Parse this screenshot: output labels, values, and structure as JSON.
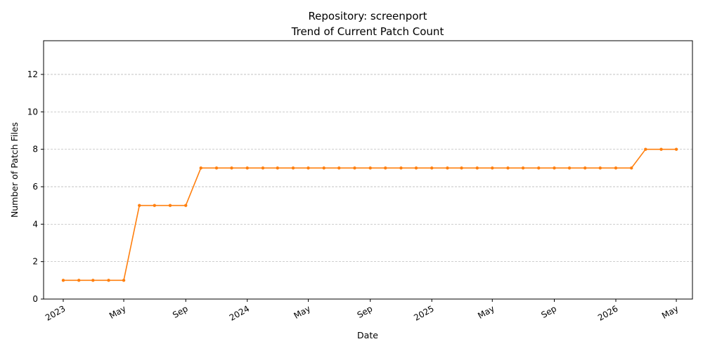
{
  "chart_data": {
    "type": "line",
    "title": "Repository: screenport",
    "subtitle": "Trend of Current Patch Count",
    "xlabel": "Date",
    "ylabel": "Number of Patch Files",
    "ylim": [
      0,
      13.8
    ],
    "yticks": [
      0,
      2,
      4,
      6,
      8,
      10,
      12
    ],
    "xlim": [
      "2022-11-23",
      "2026-06-02"
    ],
    "xticks": [
      {
        "date": "2023-01-01",
        "label": "2023"
      },
      {
        "date": "2023-05-01",
        "label": "May"
      },
      {
        "date": "2023-09-01",
        "label": "Sep"
      },
      {
        "date": "2024-01-01",
        "label": "2024"
      },
      {
        "date": "2024-05-01",
        "label": "May"
      },
      {
        "date": "2024-09-01",
        "label": "Sep"
      },
      {
        "date": "2025-01-01",
        "label": "2025"
      },
      {
        "date": "2025-05-01",
        "label": "May"
      },
      {
        "date": "2025-09-01",
        "label": "Sep"
      },
      {
        "date": "2026-01-01",
        "label": "2026"
      },
      {
        "date": "2026-05-01",
        "label": "May"
      }
    ],
    "grid": "y-dashed",
    "line_color": "#ff7f0e",
    "series": [
      {
        "x": [
          "2023-01-01",
          "2023-02-01",
          "2023-03-01",
          "2023-04-01",
          "2023-05-01",
          "2023-06-01",
          "2023-07-01",
          "2023-08-01",
          "2023-09-01",
          "2023-10-01",
          "2023-11-01",
          "2023-12-01",
          "2024-01-01",
          "2024-02-01",
          "2024-03-01",
          "2024-04-01",
          "2024-05-01",
          "2024-06-01",
          "2024-07-01",
          "2024-08-01",
          "2024-09-01",
          "2024-10-01",
          "2024-11-01",
          "2024-12-01",
          "2025-01-01",
          "2025-02-01",
          "2025-03-01",
          "2025-04-01",
          "2025-05-01",
          "2025-06-01",
          "2025-07-01",
          "2025-08-01",
          "2025-09-01",
          "2025-10-01",
          "2025-11-01",
          "2025-12-01",
          "2026-01-01",
          "2026-02-01",
          "2026-03-01",
          "2026-04-01",
          "2026-05-01"
        ],
        "values": [
          1,
          1,
          1,
          1,
          1,
          5,
          5,
          5,
          5,
          7,
          7,
          7,
          7,
          7,
          7,
          7,
          7,
          7,
          7,
          7,
          7,
          7,
          7,
          7,
          7,
          7,
          7,
          7,
          7,
          7,
          7,
          7,
          7,
          7,
          7,
          7,
          7,
          7,
          8,
          8,
          8
        ]
      }
    ]
  }
}
